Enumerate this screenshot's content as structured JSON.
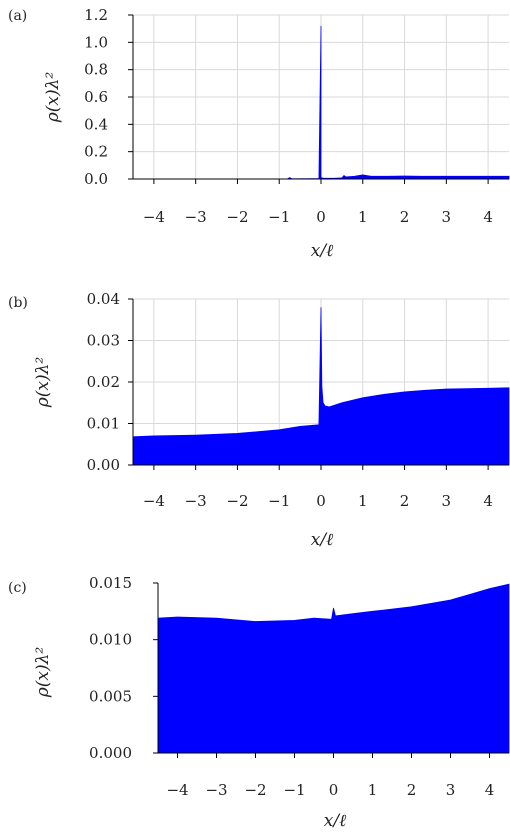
{
  "chart_data": [
    {
      "panel_label": "(a)",
      "type": "area",
      "xlabel": "x/ℓ",
      "ylabel": "ρ(x)λ²",
      "xlim": [
        -4.5,
        4.5
      ],
      "ylim": [
        0,
        1.2
      ],
      "xticks": [
        -4,
        -3,
        -2,
        -1,
        0,
        1,
        2,
        3,
        4
      ],
      "xtick_labels": [
        "−4",
        "−3",
        "−2",
        "−1",
        "0",
        "1",
        "2",
        "3",
        "4"
      ],
      "yticks": [
        0,
        0.2,
        0.4,
        0.6,
        0.8,
        1.0,
        1.2
      ],
      "ytick_labels": [
        "0.0",
        "0.2",
        "0.4",
        "0.6",
        "0.8",
        "1.0",
        "1.2"
      ],
      "grid": true,
      "color": "#0000ff",
      "series": [
        {
          "x": [
            -4.5,
            -2.0,
            -1.0,
            -0.8,
            -0.75,
            -0.7,
            -0.6,
            -0.2,
            -0.05,
            0.0,
            0.0,
            0.02,
            0.05,
            0.1,
            0.3,
            0.5,
            0.55,
            0.6,
            0.8,
            1.0,
            1.2,
            1.6,
            2.0,
            2.4,
            3.0,
            3.5,
            4.0,
            4.5
          ],
          "y": [
            0.0,
            0.0,
            0.0,
            0.001,
            0.01,
            0.002,
            0.002,
            0.003,
            0.003,
            1.12,
            0.01,
            0.01,
            0.005,
            0.005,
            0.005,
            0.008,
            0.025,
            0.015,
            0.02,
            0.03,
            0.02,
            0.02,
            0.022,
            0.02,
            0.02,
            0.02,
            0.02,
            0.02
          ]
        }
      ]
    },
    {
      "panel_label": "(b)",
      "type": "area",
      "xlabel": "x/ℓ",
      "ylabel": "ρ(x)λ²",
      "xlim": [
        -4.5,
        4.5
      ],
      "ylim": [
        0,
        0.04
      ],
      "xticks": [
        -4,
        -3,
        -2,
        -1,
        0,
        1,
        2,
        3,
        4
      ],
      "xtick_labels": [
        "−4",
        "−3",
        "−2",
        "−1",
        "0",
        "1",
        "2",
        "3",
        "4"
      ],
      "yticks": [
        0,
        0.01,
        0.02,
        0.03,
        0.04
      ],
      "ytick_labels": [
        "0.00",
        "0.01",
        "0.02",
        "0.03",
        "0.04"
      ],
      "grid": true,
      "color": "#0000ff",
      "series": [
        {
          "x": [
            -4.5,
            -4.0,
            -3.0,
            -2.0,
            -1.0,
            -0.5,
            -0.05,
            0.0,
            0.02,
            0.05,
            0.1,
            0.2,
            0.5,
            1.0,
            1.5,
            2.0,
            2.5,
            3.0,
            3.5,
            4.0,
            4.5
          ],
          "y": [
            0.0068,
            0.007,
            0.0072,
            0.0076,
            0.0085,
            0.0093,
            0.0097,
            0.038,
            0.019,
            0.015,
            0.0142,
            0.014,
            0.015,
            0.0162,
            0.017,
            0.0176,
            0.018,
            0.0183,
            0.0184,
            0.0185,
            0.0186
          ]
        }
      ]
    },
    {
      "panel_label": "(c)",
      "type": "area",
      "xlabel": "x/ℓ",
      "ylabel": "ρ(x)λ²",
      "xlim": [
        -4.5,
        4.5
      ],
      "ylim": [
        0,
        0.015
      ],
      "xticks": [
        -4,
        -3,
        -2,
        -1,
        0,
        1,
        2,
        3,
        4
      ],
      "xtick_labels": [
        "−4",
        "−3",
        "−2",
        "−1",
        "0",
        "1",
        "2",
        "3",
        "4"
      ],
      "yticks": [
        0,
        0.005,
        0.01,
        0.015
      ],
      "ytick_labels": [
        "0.000",
        "0.005",
        "0.010",
        "0.015"
      ],
      "grid": false,
      "color": "#0000ff",
      "series": [
        {
          "x": [
            -4.5,
            -4.0,
            -3.0,
            -2.0,
            -1.0,
            -0.5,
            -0.05,
            0.0,
            0.05,
            0.5,
            1.0,
            2.0,
            3.0,
            3.5,
            4.0,
            4.5
          ],
          "y": [
            0.0119,
            0.012,
            0.0119,
            0.0116,
            0.0117,
            0.0119,
            0.0118,
            0.0128,
            0.0121,
            0.0123,
            0.0125,
            0.0129,
            0.0135,
            0.014,
            0.0145,
            0.0149
          ]
        }
      ]
    }
  ]
}
